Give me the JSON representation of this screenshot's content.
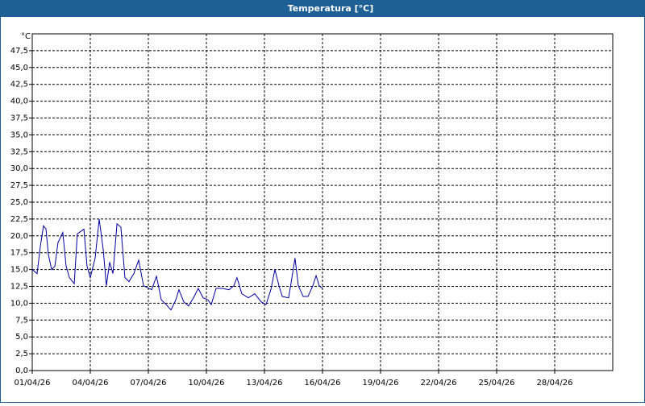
{
  "chart_data": {
    "type": "line",
    "title": "Temperatura [°C]",
    "y_unit": "°C",
    "x": [
      0,
      0.25,
      0.42,
      0.58,
      0.71,
      0.83,
      1,
      1.17,
      1.33,
      1.58,
      1.75,
      1.92,
      2.17,
      2.33,
      2.67,
      2.83,
      3,
      3.25,
      3.46,
      3.67,
      3.83,
      4,
      4.17,
      4.38,
      4.58,
      4.79,
      5,
      5.25,
      5.5,
      5.75,
      6.17,
      6.42,
      6.67,
      6.92,
      7.17,
      7.42,
      7.58,
      7.83,
      8.08,
      8.33,
      8.58,
      8.83,
      9.08,
      9.25,
      9.5,
      9.83,
      10.17,
      10.42,
      10.58,
      10.83,
      11.17,
      11.5,
      11.83,
      12.08,
      12.33,
      12.54,
      12.75,
      12.92,
      13.25,
      13.42,
      13.58,
      13.75,
      14,
      14.25,
      14.5,
      14.67,
      14.83,
      15
    ],
    "series": [
      {
        "color": "#0000a0",
        "values": [
          15,
          14.4,
          18.5,
          21.5,
          21,
          17.3,
          15,
          15.5,
          19,
          20.5,
          15.5,
          13.8,
          12.9,
          20.3,
          21,
          15.5,
          13.8,
          16.7,
          22.5,
          17.9,
          12.6,
          16.1,
          14.4,
          21.8,
          21.3,
          13.8,
          13.2,
          14.4,
          16.4,
          12.6,
          12,
          14,
          10.5,
          9.8,
          9,
          10.5,
          12,
          10.2,
          9.6,
          10.8,
          12.2,
          10.8,
          10.5,
          9.8,
          12.2,
          12.2,
          12,
          12.6,
          13.8,
          11.4,
          10.8,
          11.4,
          10.2,
          9.8,
          12,
          15,
          12.6,
          11,
          10.8,
          13.8,
          16.7,
          12.6,
          11,
          11,
          12.6,
          14.1,
          12.6,
          12.2
        ]
      }
    ],
    "xlim": [
      0,
      30
    ],
    "xticks": [
      {
        "value": 0,
        "label": "01/04/26"
      },
      {
        "value": 3,
        "label": "04/04/26"
      },
      {
        "value": 6,
        "label": "07/04/26"
      },
      {
        "value": 9,
        "label": "10/04/26"
      },
      {
        "value": 12,
        "label": "13/04/26"
      },
      {
        "value": 15,
        "label": "16/04/26"
      },
      {
        "value": 18,
        "label": "19/04/26"
      },
      {
        "value": 21,
        "label": "22/04/26"
      },
      {
        "value": 24,
        "label": "25/04/26"
      },
      {
        "value": 27,
        "label": "28/04/26"
      }
    ],
    "ylim": [
      0,
      50
    ],
    "yticks": [
      {
        "value": 0,
        "label": "0,0"
      },
      {
        "value": 2.5,
        "label": "2,5"
      },
      {
        "value": 5,
        "label": "5,0"
      },
      {
        "value": 7.5,
        "label": "7,5"
      },
      {
        "value": 10,
        "label": "10,0"
      },
      {
        "value": 12.5,
        "label": "12,5"
      },
      {
        "value": 15,
        "label": "15,0"
      },
      {
        "value": 17.5,
        "label": "17,5"
      },
      {
        "value": 20,
        "label": "20,0"
      },
      {
        "value": 22.5,
        "label": "22,5"
      },
      {
        "value": 25,
        "label": "25,0"
      },
      {
        "value": 27.5,
        "label": "27,5"
      },
      {
        "value": 30,
        "label": "30,0"
      },
      {
        "value": 32.5,
        "label": "32,5"
      },
      {
        "value": 35,
        "label": "35,0"
      },
      {
        "value": 37.5,
        "label": "37,5"
      },
      {
        "value": 40,
        "label": "40,0"
      },
      {
        "value": 42.5,
        "label": "42,5"
      },
      {
        "value": 45,
        "label": "45,0"
      },
      {
        "value": 47.5,
        "label": "47,5"
      }
    ],
    "grid": true
  }
}
